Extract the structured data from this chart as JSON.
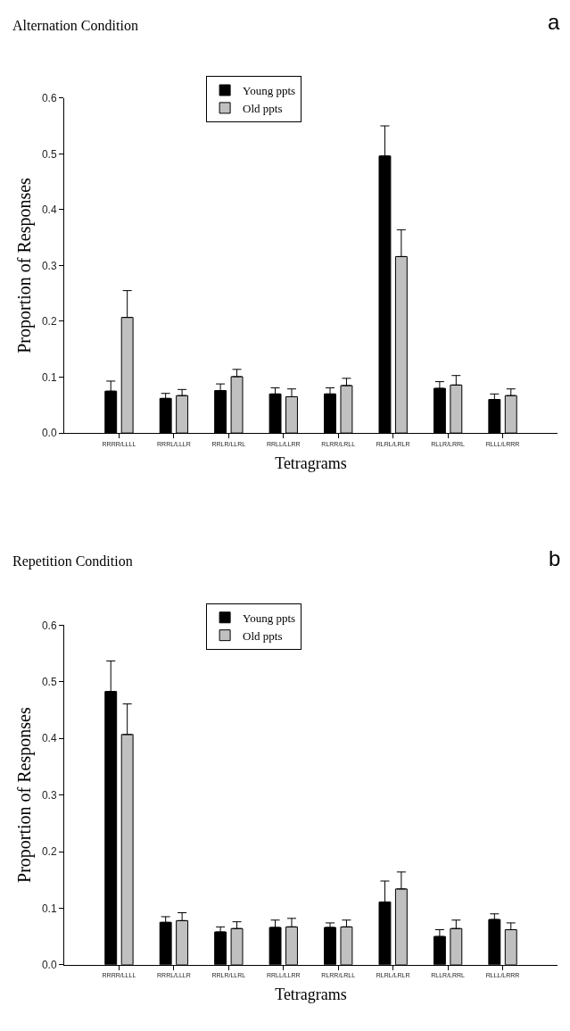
{
  "chart_data": [
    {
      "type": "bar",
      "title": "Alternation Condition",
      "annotations": [
        "a"
      ],
      "xlabel": "Tetragrams",
      "ylabel": "Proportion of Responses",
      "categories": [
        "RRRR/LLLL",
        "RRRL/LLLR",
        "RRLR/LLRL",
        "RRLL/LLRR",
        "RLRR/LRLL",
        "RLRL/LRLR",
        "RLLR/LRRL",
        "RLLL/LRRR"
      ],
      "series": [
        {
          "name": "Young ppts",
          "color": "#000000",
          "values": [
            0.075,
            0.062,
            0.076,
            0.07,
            0.07,
            0.496,
            0.08,
            0.06
          ],
          "errors": [
            [
              0.075,
              0.093
            ],
            [
              0.062,
              0.071
            ],
            [
              0.076,
              0.088
            ],
            [
              0.07,
              0.081
            ],
            [
              0.07,
              0.081
            ],
            [
              0.496,
              0.55
            ],
            [
              0.08,
              0.092
            ],
            [
              0.06,
              0.07
            ]
          ]
        },
        {
          "name": "Old ppts",
          "color": "#c0c0c0",
          "values": [
            0.207,
            0.067,
            0.101,
            0.065,
            0.085,
            0.316,
            0.086,
            0.067
          ],
          "errors": [
            [
              0.207,
              0.255
            ],
            [
              0.067,
              0.078
            ],
            [
              0.101,
              0.114
            ],
            [
              0.065,
              0.079
            ],
            [
              0.085,
              0.098
            ],
            [
              0.316,
              0.364
            ],
            [
              0.086,
              0.103
            ],
            [
              0.067,
              0.079
            ]
          ]
        }
      ],
      "ylim": [
        0,
        0.6
      ],
      "yticks": [
        {
          "value": 0,
          "label": "0.0"
        },
        0.1,
        0.2,
        0.3,
        0.4,
        0.5,
        0.6
      ],
      "legend": "top"
    },
    {
      "type": "bar",
      "title": "Repetition Condition",
      "annotations": [
        "b"
      ],
      "xlabel": "Tetragrams",
      "ylabel": "Proportion of Responses",
      "categories": [
        "RRRR/LLLL",
        "RRRL/LLLR",
        "RRLR/LLRL",
        "RRLL/LLRR",
        "RLRR/LRLL",
        "RLRL/LRLR",
        "RLLR/LRRL",
        "RLLL/LRRR"
      ],
      "series": [
        {
          "name": "Young ppts",
          "color": "#000000",
          "values": [
            0.483,
            0.075,
            0.058,
            0.066,
            0.066,
            0.111,
            0.05,
            0.08
          ],
          "errors": [
            [
              0.483,
              0.537
            ],
            [
              0.075,
              0.085
            ],
            [
              0.058,
              0.067
            ],
            [
              0.066,
              0.079
            ],
            [
              0.066,
              0.074
            ],
            [
              0.111,
              0.148
            ],
            [
              0.05,
              0.062
            ],
            [
              0.08,
              0.09
            ]
          ]
        },
        {
          "name": "Old ppts",
          "color": "#c0c0c0",
          "values": [
            0.407,
            0.078,
            0.064,
            0.067,
            0.067,
            0.134,
            0.064,
            0.062
          ],
          "errors": [
            [
              0.407,
              0.461
            ],
            [
              0.078,
              0.092
            ],
            [
              0.064,
              0.076
            ],
            [
              0.067,
              0.082
            ],
            [
              0.067,
              0.079
            ],
            [
              0.134,
              0.164
            ],
            [
              0.064,
              0.079
            ],
            [
              0.062,
              0.074
            ]
          ]
        }
      ],
      "ylim": [
        0,
        0.6
      ],
      "yticks": [
        {
          "value": 0,
          "label": "0.0"
        },
        0.1,
        0.2,
        0.3,
        0.4,
        0.5,
        0.6
      ],
      "legend": "top"
    }
  ]
}
